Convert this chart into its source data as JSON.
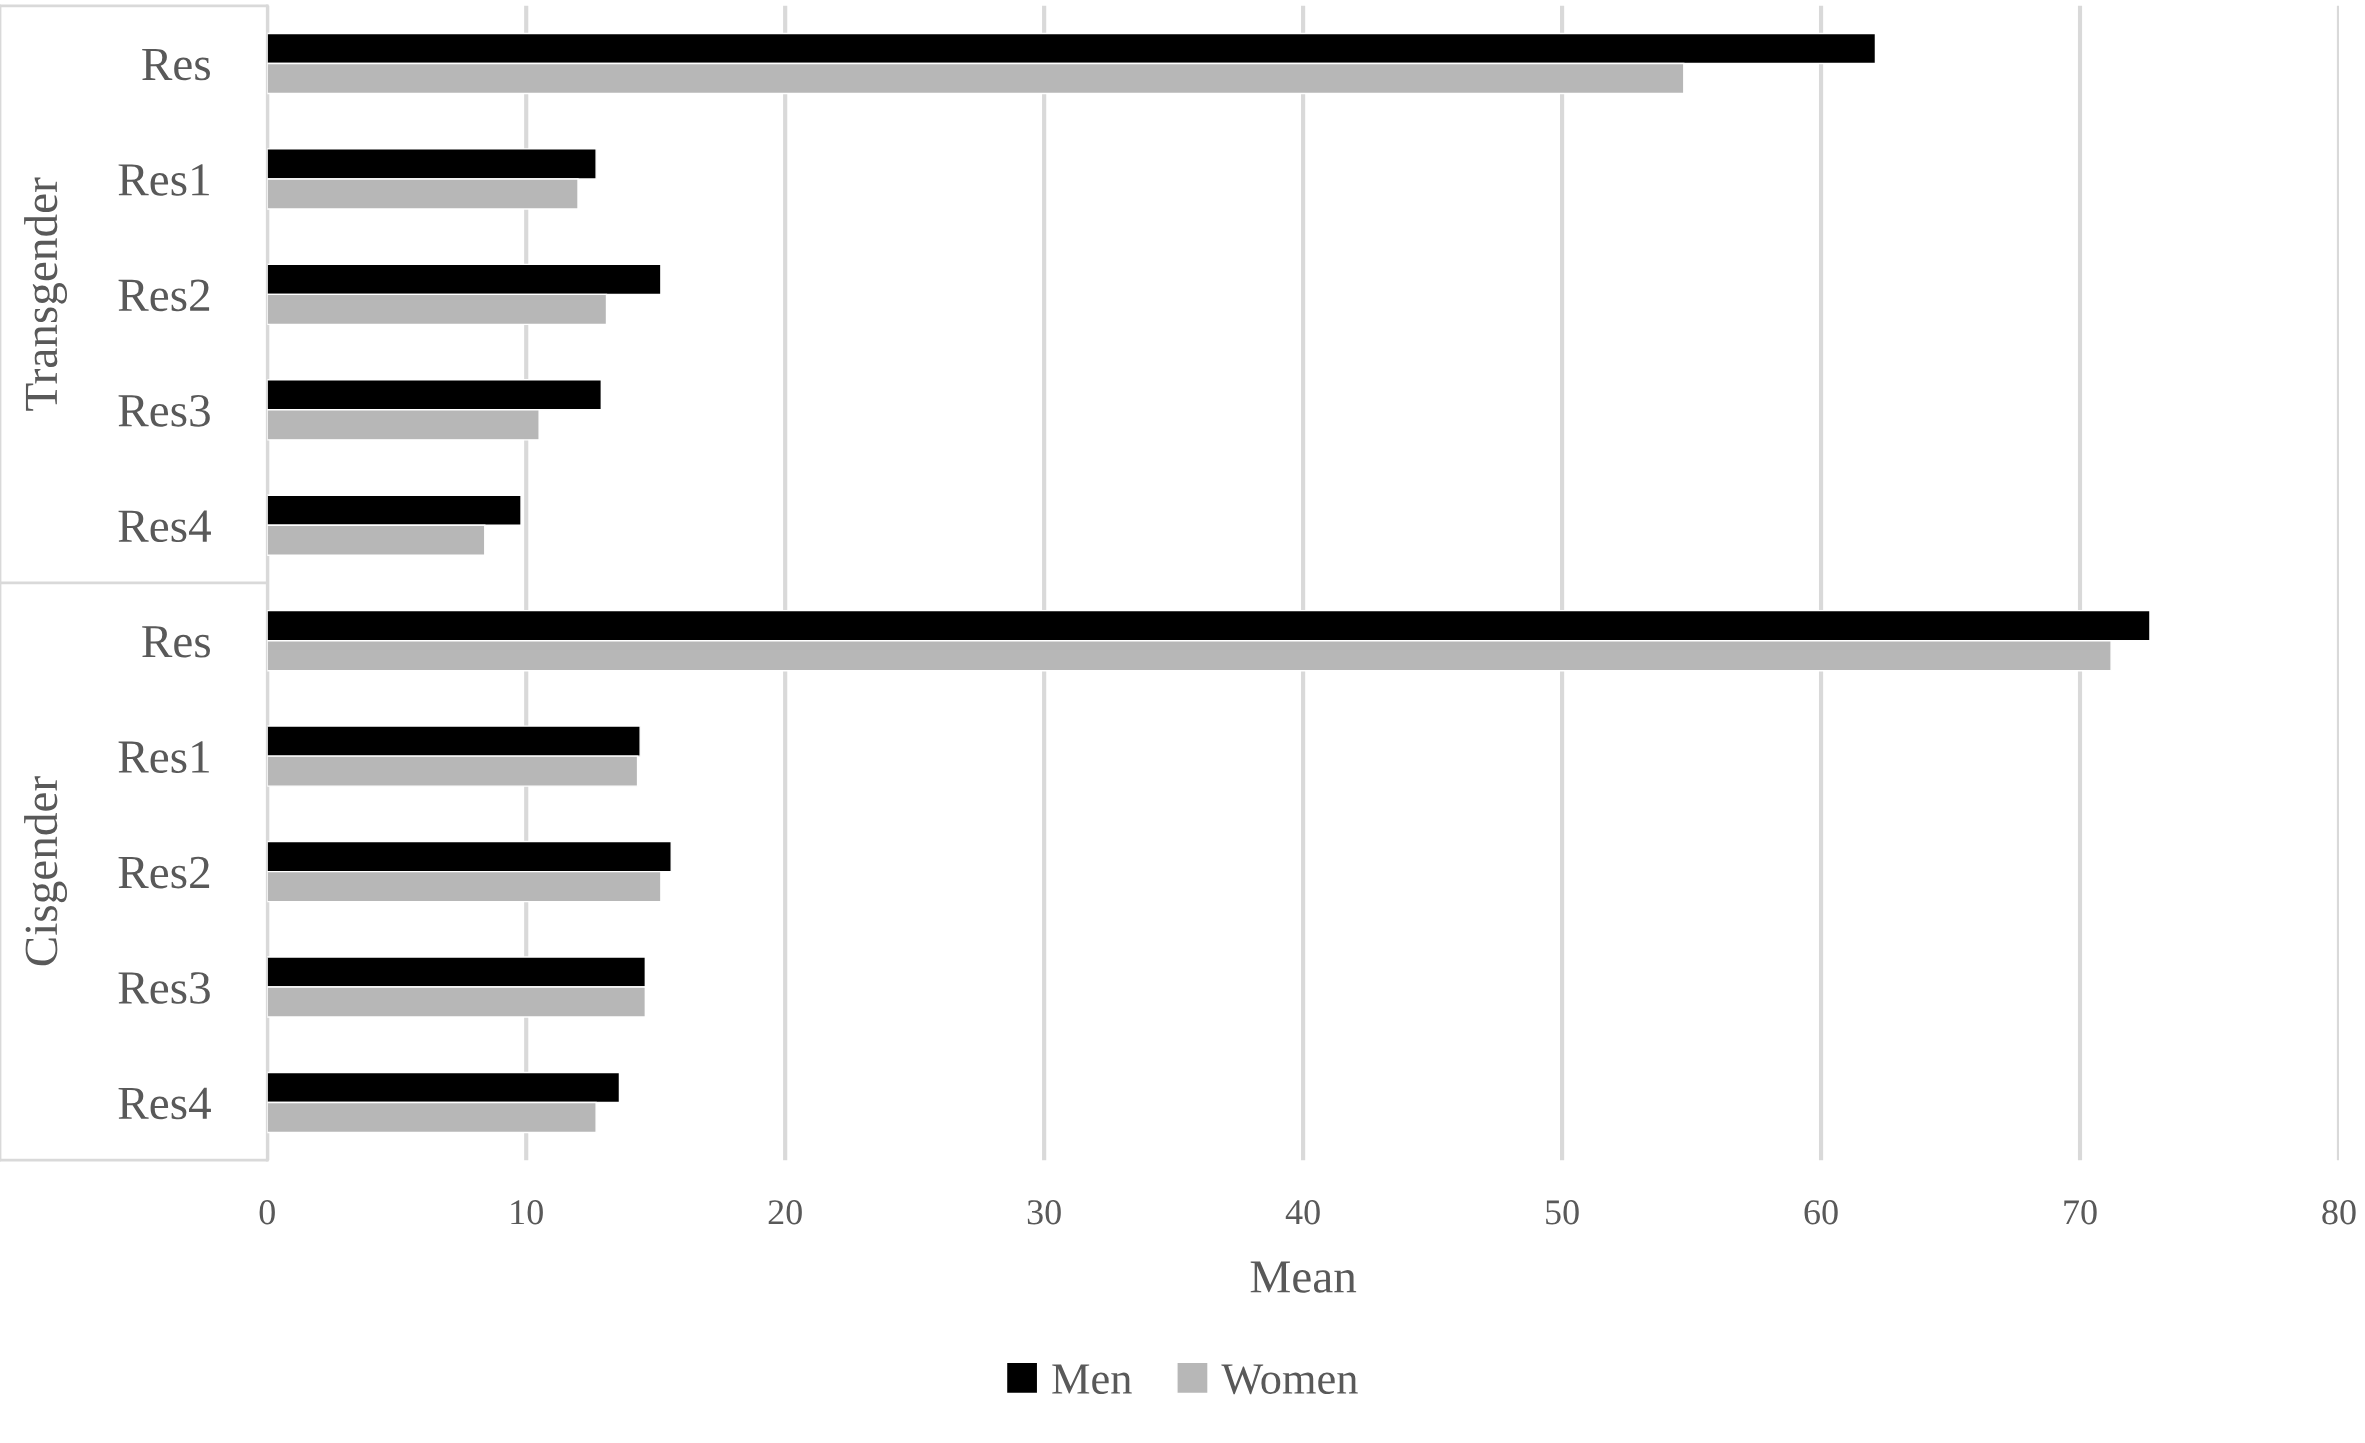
{
  "chart_data": {
    "type": "bar",
    "orientation": "horizontal",
    "xlabel": "Mean",
    "categories": [
      "Res",
      "Res1",
      "Res2",
      "Res3",
      "Res4",
      "Res",
      "Res1",
      "Res2",
      "Res3",
      "Res4"
    ],
    "series": [
      {
        "name": "Men",
        "color": "#000000",
        "values": [
          62.1,
          12.7,
          15.2,
          12.9,
          9.8,
          72.7,
          14.4,
          15.6,
          14.6,
          13.6
        ]
      },
      {
        "name": "Women",
        "color": "#b7b7b7",
        "values": [
          54.7,
          12.0,
          13.1,
          10.5,
          8.4,
          71.2,
          14.3,
          15.2,
          14.6,
          12.7
        ]
      }
    ],
    "xlim": [
      0,
      80
    ],
    "xticks": [
      0,
      10,
      20,
      30,
      40,
      50,
      60,
      70,
      80
    ],
    "annotations": [
      "Transgender",
      "Cisgender"
    ],
    "grid": "x",
    "legend": "bottom"
  }
}
